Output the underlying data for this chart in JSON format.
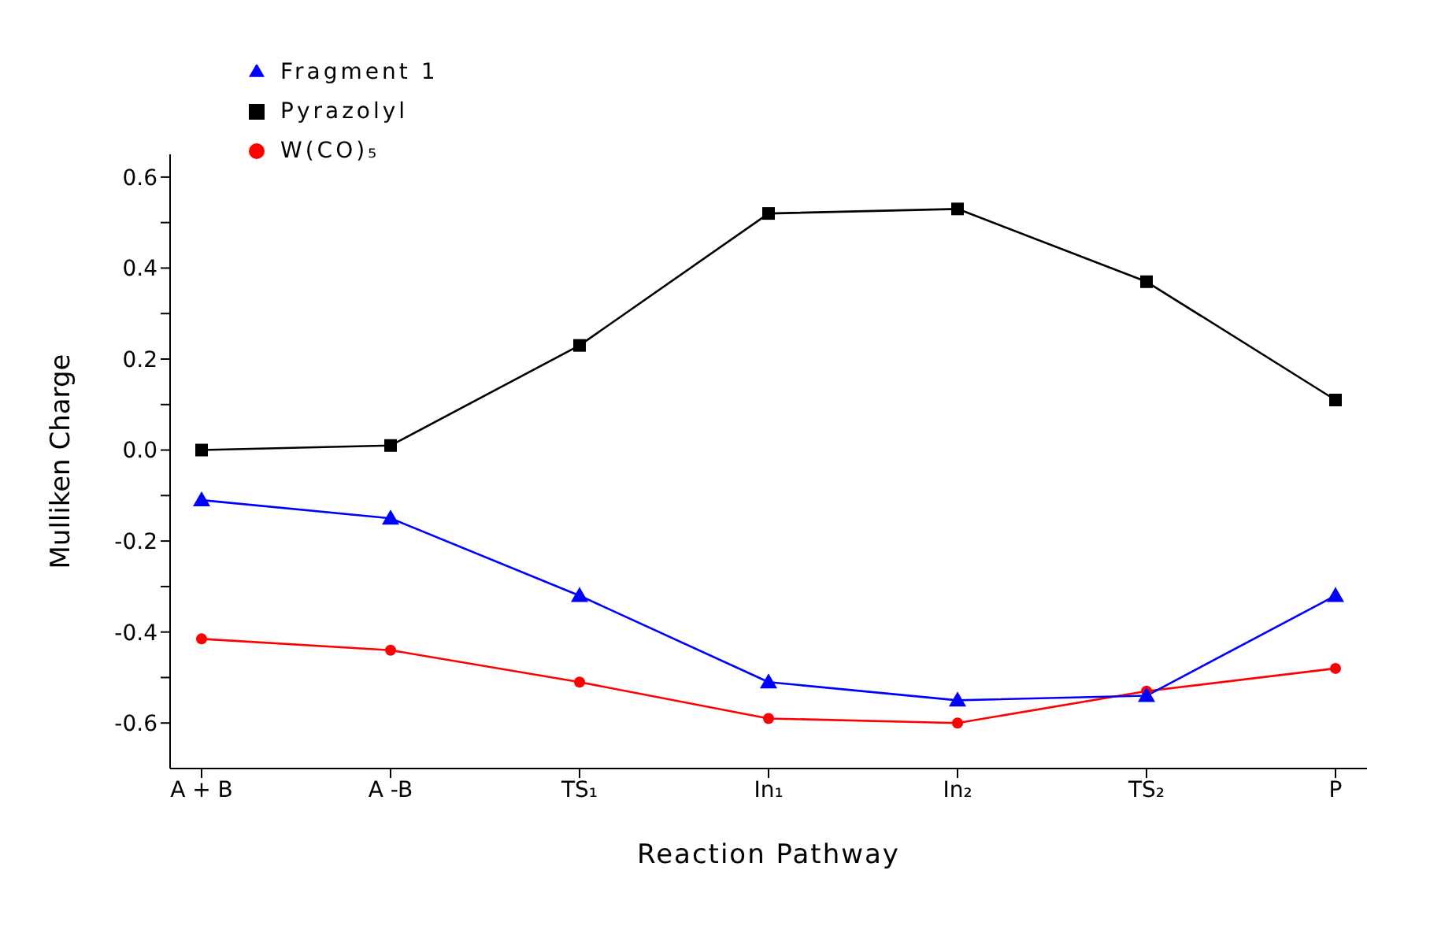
{
  "chart_data": {
    "type": "line",
    "xlabel": "Reaction Pathway",
    "ylabel": "Mulliken Charge",
    "categories": [
      "A + B",
      "A -B",
      "TS₁",
      "In₁",
      "In₂",
      "TS₂",
      "P"
    ],
    "series": [
      {
        "name": "Pyrazolyl",
        "color": "#000000",
        "marker": "square",
        "values": [
          0.0,
          0.01,
          0.23,
          0.52,
          0.53,
          0.37,
          0.11
        ]
      },
      {
        "name": "W(CO)₅",
        "color": "#ff0000",
        "marker": "circle",
        "values": [
          -0.415,
          -0.44,
          -0.51,
          -0.59,
          -0.6,
          -0.53,
          -0.48
        ]
      },
      {
        "name": "Fragment 1",
        "color": "#0000ff",
        "marker": "triangle",
        "values": [
          -0.11,
          -0.15,
          -0.32,
          -0.51,
          -0.55,
          -0.54,
          -0.32
        ]
      }
    ],
    "ylim": [
      -0.7,
      0.65
    ],
    "yticks": [
      -0.6,
      {
        "value": -0.5,
        "label": null
      },
      -0.4,
      {
        "value": -0.3,
        "label": null
      },
      -0.2,
      {
        "value": -0.1,
        "label": null
      },
      {
        "value": 0,
        "label": "0.0"
      },
      {
        "value": 0.1,
        "label": null
      },
      0.2,
      {
        "value": 0.3,
        "label": null
      },
      0.4,
      {
        "value": 0.5,
        "label": null
      },
      0.6
    ],
    "grid": false,
    "legend": "top left",
    "line_style": "solid"
  }
}
